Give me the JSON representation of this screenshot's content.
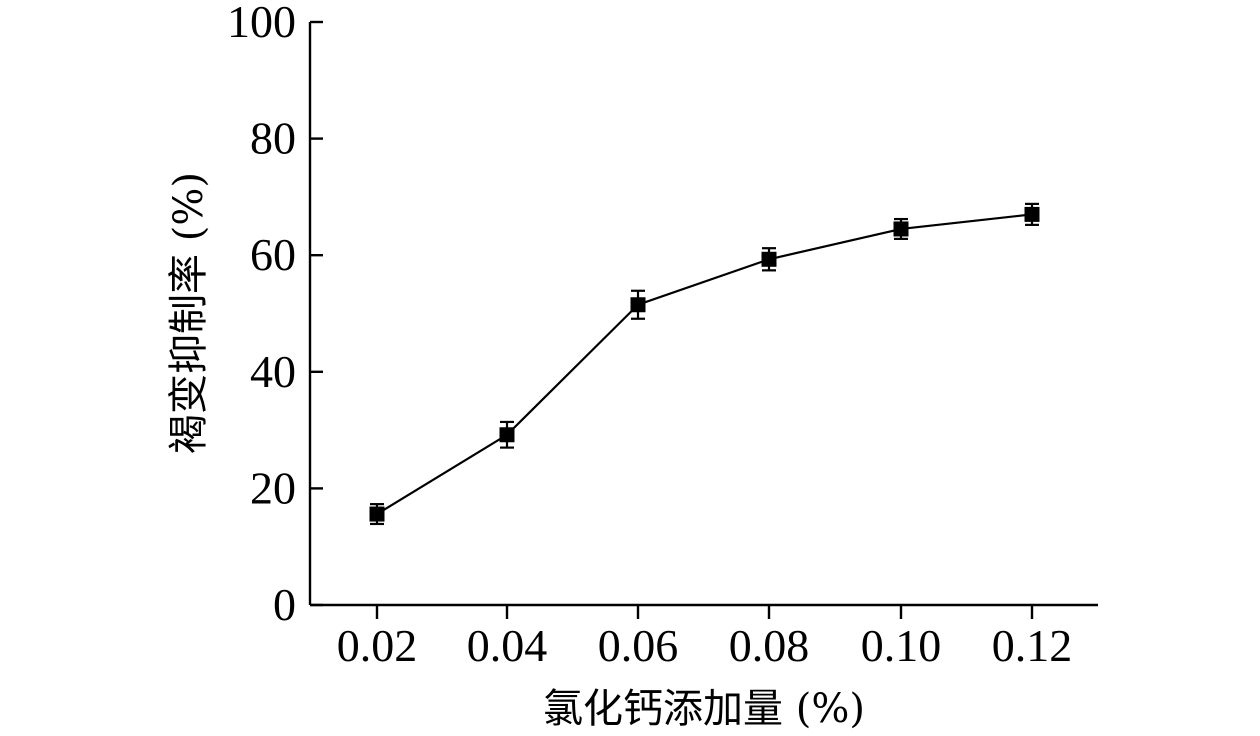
{
  "chart_data": {
    "type": "line",
    "title": "",
    "xlabel": "氯化钙添加量 (%)",
    "ylabel": "褐变抑制率 (%)",
    "categories": [
      "0.02",
      "0.04",
      "0.06",
      "0.08",
      "0.10",
      "0.12"
    ],
    "x": [
      0.02,
      0.04,
      0.06,
      0.08,
      0.1,
      0.12
    ],
    "ylim": [
      0,
      100
    ],
    "yticks": [
      "0",
      "20",
      "40",
      "60",
      "80",
      "100"
    ],
    "series": [
      {
        "values": [
          15.6,
          29.2,
          51.5,
          59.3,
          64.5,
          67.0
        ],
        "errors": [
          1.7,
          2.2,
          2.4,
          1.9,
          1.7,
          1.8
        ],
        "color": "#000000",
        "marker": "square"
      }
    ],
    "grid": false,
    "legend": "none"
  }
}
